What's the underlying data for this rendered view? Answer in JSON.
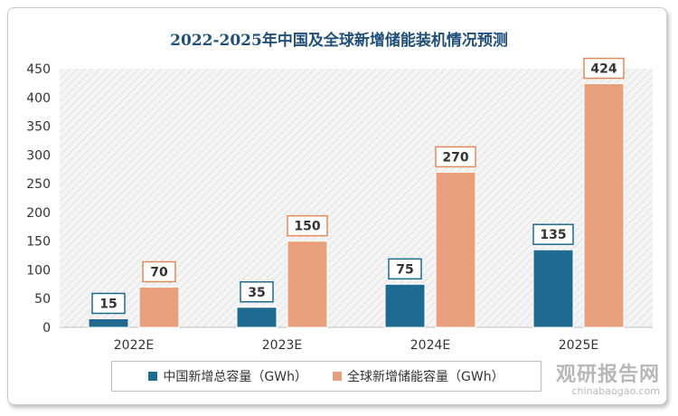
{
  "chart_data": {
    "type": "bar",
    "title": "2022-2025年中国及全球新增储能装机情况预测",
    "categories": [
      "2022E",
      "2023E",
      "2024E",
      "2025E"
    ],
    "series": [
      {
        "name": "中国新增总容量（GWh）",
        "values": [
          15,
          35,
          75,
          135
        ],
        "color": "#1f6b8f",
        "label_border": "#1f6b8f"
      },
      {
        "name": "全球新增储能容量（GWh）",
        "values": [
          70,
          150,
          270,
          424
        ],
        "color": "#e8a07c",
        "label_border": "#e08b5c"
      }
    ],
    "yticks": [
      0,
      50,
      100,
      150,
      200,
      250,
      300,
      350,
      400,
      450
    ],
    "ylim": [
      0,
      450
    ],
    "xlabel": "",
    "ylabel": "",
    "legend": "bottom"
  },
  "watermark": {
    "cn": "观研报告网",
    "en": "chinabaogao.com"
  }
}
